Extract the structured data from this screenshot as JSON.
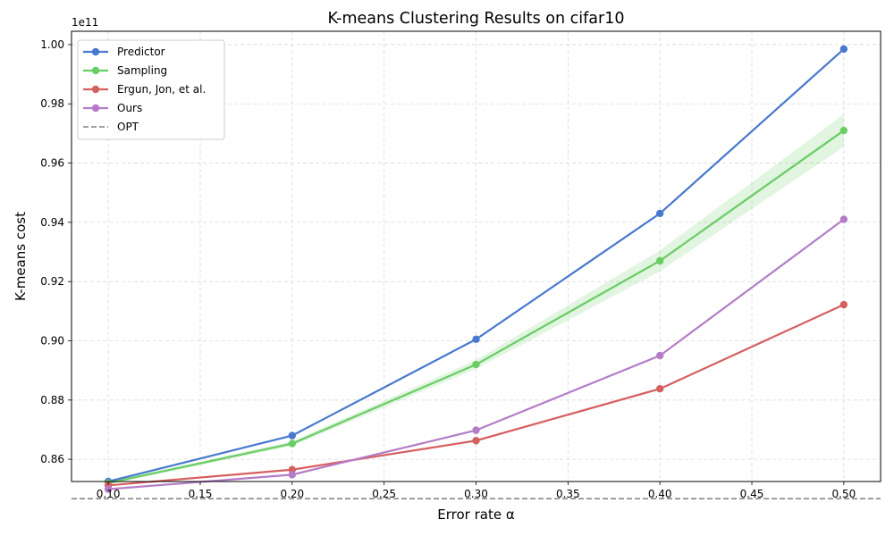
{
  "chart_data": {
    "type": "line",
    "title": "K-means Clustering Results on cifar10",
    "xlabel": "Error rate α",
    "ylabel": "K-means cost",
    "y_offset_label": "1e11",
    "x": [
      0.1,
      0.2,
      0.3,
      0.4,
      0.5
    ],
    "xlim": [
      0.08,
      0.52
    ],
    "ylim": [
      0.8525,
      1.0045
    ],
    "x_ticks": [
      0.1,
      0.15,
      0.2,
      0.25,
      0.3,
      0.35,
      0.4,
      0.45,
      0.5
    ],
    "x_tick_labels": [
      "0.10",
      "0.15",
      "0.20",
      "0.25",
      "0.30",
      "0.35",
      "0.40",
      "0.45",
      "0.50"
    ],
    "y_ticks": [
      0.86,
      0.88,
      0.9,
      0.92,
      0.94,
      0.96,
      0.98,
      1.0
    ],
    "y_tick_labels": [
      "0.86",
      "0.88",
      "0.90",
      "0.92",
      "0.94",
      "0.96",
      "0.98",
      "1.00"
    ],
    "grid": true,
    "legend_position": "top-left",
    "series": [
      {
        "name": "Predictor",
        "color": "#4878cf",
        "values": [
          0.8525,
          0.868,
          0.9005,
          0.943,
          0.9985
        ]
      },
      {
        "name": "Sampling",
        "color": "#6acc65",
        "values": [
          0.852,
          0.8653,
          0.892,
          0.927,
          0.971
        ],
        "band_lower": [
          0.8515,
          0.8645,
          0.8905,
          0.9235,
          0.9655
        ],
        "band_upper": [
          0.8525,
          0.8661,
          0.8935,
          0.9305,
          0.9765
        ]
      },
      {
        "name": "Ergun, Jon, et al.",
        "color": "#d65f5f",
        "values": [
          0.8512,
          0.8565,
          0.8663,
          0.8838,
          0.9122
        ]
      },
      {
        "name": "Ours",
        "color": "#b47cc7",
        "values": [
          0.8499,
          0.8548,
          0.8698,
          0.895,
          0.941
        ]
      }
    ],
    "reference_line": {
      "name": "OPT",
      "value": 0.8467,
      "color": "#808080",
      "style": "dashed"
    }
  }
}
